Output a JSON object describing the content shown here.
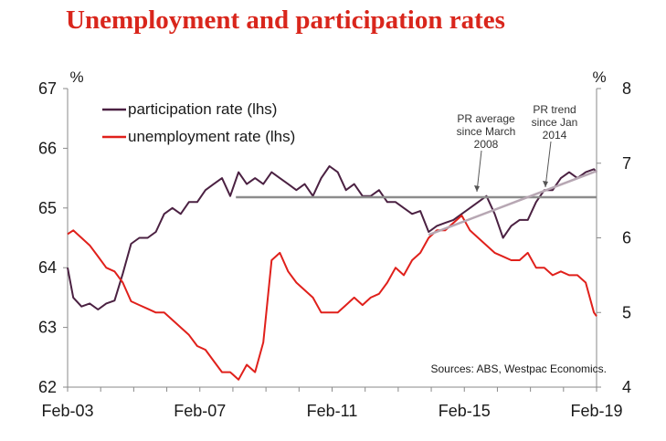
{
  "title": "Unemployment and participation rates",
  "chart_data": {
    "type": "line",
    "title": "Unemployment and participation rates",
    "x_ticks": [
      "Feb-03",
      "Feb-07",
      "Feb-11",
      "Feb-15",
      "Feb-19"
    ],
    "x_range": [
      2003.08,
      2019.08
    ],
    "left_axis": {
      "unit": "%",
      "range": [
        62,
        67
      ],
      "ticks": [
        "62",
        "63",
        "64",
        "65",
        "66",
        "67"
      ]
    },
    "right_axis": {
      "unit": "%",
      "range": [
        4,
        8
      ],
      "ticks": [
        "4",
        "5",
        "6",
        "7",
        "8"
      ]
    },
    "legend": [
      {
        "label": "participation rate (lhs)",
        "color": "#4b2142"
      },
      {
        "label": "unemployment rate (lhs)",
        "color": "#e0201b"
      }
    ],
    "series": [
      {
        "name": "participation rate (lhs)",
        "axis": "left",
        "color": "#4b2142",
        "x": [
          2003.08,
          2003.25,
          2003.5,
          2003.75,
          2004.0,
          2004.25,
          2004.5,
          2004.75,
          2005.0,
          2005.25,
          2005.5,
          2005.75,
          2006.0,
          2006.25,
          2006.5,
          2006.75,
          2007.0,
          2007.25,
          2007.5,
          2007.75,
          2008.0,
          2008.25,
          2008.5,
          2008.75,
          2009.0,
          2009.25,
          2009.5,
          2009.75,
          2010.0,
          2010.25,
          2010.5,
          2010.75,
          2011.0,
          2011.25,
          2011.5,
          2011.75,
          2012.0,
          2012.25,
          2012.5,
          2012.75,
          2013.0,
          2013.25,
          2013.5,
          2013.75,
          2014.0,
          2014.25,
          2014.5,
          2014.75,
          2015.0,
          2015.25,
          2015.5,
          2015.75,
          2016.0,
          2016.25,
          2016.5,
          2016.75,
          2017.0,
          2017.25,
          2017.5,
          2017.75,
          2018.0,
          2018.25,
          2018.5,
          2018.75,
          2019.0,
          2019.08
        ],
        "y": [
          64.0,
          63.5,
          63.35,
          63.4,
          63.3,
          63.4,
          63.45,
          63.9,
          64.4,
          64.5,
          64.5,
          64.6,
          64.9,
          65.0,
          64.9,
          65.1,
          65.1,
          65.3,
          65.4,
          65.5,
          65.2,
          65.6,
          65.4,
          65.5,
          65.4,
          65.6,
          65.5,
          65.4,
          65.3,
          65.4,
          65.2,
          65.5,
          65.7,
          65.6,
          65.3,
          65.4,
          65.2,
          65.2,
          65.3,
          65.1,
          65.1,
          65.0,
          64.9,
          64.95,
          64.6,
          64.7,
          64.75,
          64.8,
          64.9,
          65.0,
          65.1,
          65.2,
          64.9,
          64.5,
          64.7,
          64.8,
          64.8,
          65.1,
          65.3,
          65.3,
          65.5,
          65.6,
          65.5,
          65.6,
          65.65,
          65.6
        ]
      },
      {
        "name": "unemployment rate (lhs)",
        "axis": "right",
        "color": "#e0201b",
        "x": [
          2003.08,
          2003.25,
          2003.5,
          2003.75,
          2004.0,
          2004.25,
          2004.5,
          2004.75,
          2005.0,
          2005.25,
          2005.5,
          2005.75,
          2006.0,
          2006.25,
          2006.5,
          2006.75,
          2007.0,
          2007.25,
          2007.5,
          2007.75,
          2008.0,
          2008.25,
          2008.5,
          2008.75,
          2009.0,
          2009.25,
          2009.5,
          2009.75,
          2010.0,
          2010.25,
          2010.5,
          2010.75,
          2011.0,
          2011.25,
          2011.5,
          2011.75,
          2012.0,
          2012.25,
          2012.5,
          2012.75,
          2013.0,
          2013.25,
          2013.5,
          2013.75,
          2014.0,
          2014.25,
          2014.5,
          2014.75,
          2015.0,
          2015.25,
          2015.5,
          2015.75,
          2016.0,
          2016.25,
          2016.5,
          2016.75,
          2017.0,
          2017.25,
          2017.5,
          2017.75,
          2018.0,
          2018.25,
          2018.5,
          2018.75,
          2019.0,
          2019.08
        ],
        "y": [
          6.05,
          6.1,
          6.0,
          5.9,
          5.75,
          5.6,
          5.55,
          5.4,
          5.15,
          5.1,
          5.05,
          5.0,
          5.0,
          4.9,
          4.8,
          4.7,
          4.55,
          4.5,
          4.35,
          4.2,
          4.2,
          4.1,
          4.3,
          4.2,
          4.6,
          5.7,
          5.8,
          5.55,
          5.4,
          5.3,
          5.2,
          5.0,
          5.0,
          5.0,
          5.1,
          5.2,
          5.1,
          5.2,
          5.25,
          5.4,
          5.6,
          5.5,
          5.7,
          5.8,
          6.0,
          6.1,
          6.1,
          6.2,
          6.3,
          6.1,
          6.0,
          5.9,
          5.8,
          5.75,
          5.7,
          5.7,
          5.8,
          5.6,
          5.6,
          5.5,
          5.55,
          5.5,
          5.5,
          5.4,
          5.0,
          4.95
        ]
      },
      {
        "name": "PR average since March 2008",
        "axis": "left",
        "color": "#8c8c8c",
        "x": [
          2008.17,
          2019.08
        ],
        "y": [
          65.18,
          65.18
        ]
      },
      {
        "name": "PR trend since Jan 2014",
        "axis": "left",
        "color": "#b7a7b3",
        "x": [
          2014.0,
          2019.08
        ],
        "y": [
          64.55,
          65.62
        ]
      }
    ],
    "annotations": [
      {
        "lines": [
          "PR average",
          "since March",
          "2008"
        ]
      },
      {
        "lines": [
          "PR trend",
          "since Jan",
          "2014"
        ]
      }
    ],
    "source": "Sources: ABS, Westpac Economics."
  }
}
